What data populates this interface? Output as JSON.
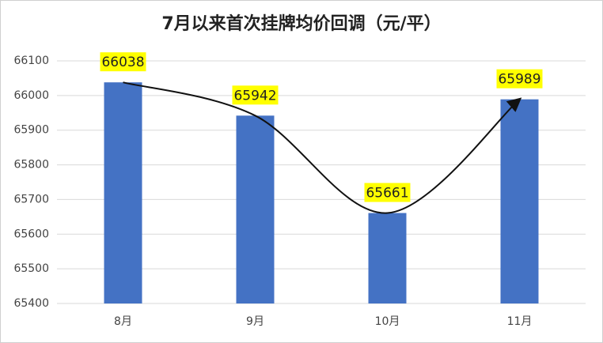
{
  "chart_data": {
    "type": "bar",
    "title": "7月以来首次挂牌均价回调（元/平）",
    "categories": [
      "8月",
      "9月",
      "10月",
      "11月"
    ],
    "values": [
      66038,
      65942,
      65661,
      65989
    ],
    "color": "#4472c4",
    "label_color": "#ffff00",
    "ylim": [
      65400,
      66100
    ],
    "yticks": [
      65400,
      65500,
      65600,
      65700,
      65800,
      65900,
      66000,
      66100
    ],
    "grid": true
  }
}
